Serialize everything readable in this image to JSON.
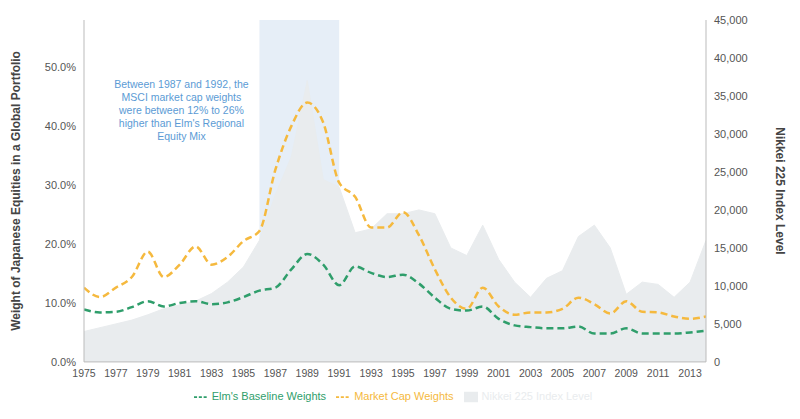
{
  "chart_data": {
    "type": "line",
    "y_label": "Weight of Japanese Equities in a Global Portfolio",
    "y2_label": "Nikkei 225 Index Level",
    "annotation": [
      "Between 1987 and 1992, the",
      "MSCI market cap weights",
      "were between 12% to 26%",
      "higher than Elm's Regional",
      "Equity Mix"
    ],
    "highlight": [
      1986,
      1991
    ],
    "x": [
      1975,
      1976,
      1977,
      1978,
      1979,
      1980,
      1981,
      1982,
      1983,
      1984,
      1985,
      1986,
      1987,
      1988,
      1989,
      1990,
      1991,
      1992,
      1993,
      1994,
      1995,
      1996,
      1997,
      1998,
      1999,
      2000,
      2001,
      2002,
      2003,
      2004,
      2005,
      2006,
      2007,
      2008,
      2009,
      2010,
      2011,
      2012,
      2013,
      2014
    ],
    "xlim": [
      1975,
      2014
    ],
    "xticks": [
      1975,
      1977,
      1979,
      1981,
      1983,
      1985,
      1987,
      1989,
      1991,
      1993,
      1995,
      1997,
      1999,
      2001,
      2003,
      2005,
      2007,
      2009,
      2011,
      2013
    ],
    "ylim": [
      0,
      58
    ],
    "yticks": [
      {
        "value": 0,
        "label": "0.0%"
      },
      {
        "value": 10,
        "label": "10.0%"
      },
      {
        "value": 20,
        "label": "20.0%"
      },
      {
        "value": 30,
        "label": "30.0%"
      },
      {
        "value": 40,
        "label": "40.0%"
      },
      {
        "value": 50,
        "label": "50.0%"
      }
    ],
    "y2lim": [
      0,
      45000
    ],
    "y2ticks": [
      0,
      {
        "value": 5000,
        "label": "5,000"
      },
      {
        "value": 10000,
        "label": "10,000"
      },
      {
        "value": 15000,
        "label": "15,000"
      },
      {
        "value": 20000,
        "label": "20,000"
      },
      {
        "value": 25000,
        "label": "25,000"
      },
      {
        "value": 30000,
        "label": "30,000"
      },
      {
        "value": 35000,
        "label": "35,000"
      },
      {
        "value": 40000,
        "label": "40,000"
      },
      {
        "value": 45000,
        "label": "45,000"
      }
    ],
    "grid": false,
    "legend": "bottom",
    "series": [
      {
        "name": "Nikkei 225 Index Level",
        "type": "area",
        "axis": "y2",
        "color": "#e9ecee",
        "values": [
          4000,
          4500,
          5000,
          5500,
          6200,
          7000,
          7500,
          8000,
          9000,
          10500,
          12500,
          16000,
          22000,
          27000,
          37000,
          24000,
          23000,
          17000,
          17500,
          19500,
          19500,
          20000,
          19500,
          15000,
          14000,
          18000,
          13500,
          10500,
          8500,
          11000,
          12000,
          16500,
          18000,
          15000,
          8900,
          10500,
          10200,
          8500,
          10500,
          16000
        ]
      },
      {
        "name": "Market Cap Weights",
        "type": "line",
        "line_style": "dashed",
        "color": "#f5b93e",
        "values": [
          12.6,
          11,
          12.6,
          14.4,
          18.7,
          14.4,
          16.5,
          19.6,
          16.5,
          17.8,
          20.5,
          22.2,
          32.6,
          40,
          44,
          40.6,
          30.4,
          28,
          22.8,
          22.8,
          25.4,
          21.5,
          15.7,
          10.9,
          9,
          12.6,
          9.4,
          8,
          8.4,
          8.4,
          9,
          10.9,
          9.8,
          8.2,
          10.3,
          8.5,
          8.4,
          7.7,
          7.3,
          7.7
        ]
      },
      {
        "name": "Elm's Baseline Weights",
        "type": "line",
        "line_style": "dashed",
        "color": "#2f9e6b",
        "values": [
          8.9,
          8.4,
          8.5,
          9.3,
          10.3,
          9.4,
          10,
          10.3,
          9.8,
          10.1,
          11,
          12.1,
          12.6,
          15.7,
          18.3,
          16.5,
          13,
          16.2,
          15.1,
          14.4,
          14.8,
          13.3,
          10.9,
          9,
          8.7,
          9.4,
          7.3,
          6.2,
          5.9,
          5.7,
          5.7,
          6,
          4.8,
          4.8,
          5.7,
          4.8,
          4.8,
          4.8,
          5,
          5.3
        ]
      }
    ]
  }
}
